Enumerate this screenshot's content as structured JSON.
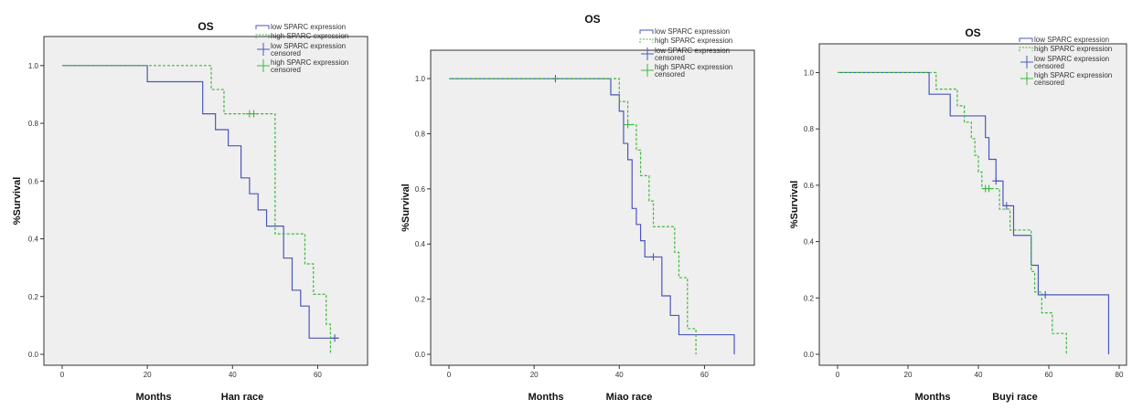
{
  "colors": {
    "low": "#4a58b8",
    "high": "#3fb93f",
    "plot_bg": "#efefef",
    "axis": "#333333"
  },
  "chart_data": [
    {
      "type": "line",
      "subtype": "kaplan-meier",
      "title": "OS",
      "xlabel": "Months",
      "caption": "Han race",
      "ylabel": "%Survival",
      "xlim": [
        0,
        70
      ],
      "ylim": [
        0,
        1.05
      ],
      "xticks": [
        "0",
        "20",
        "40",
        "60"
      ],
      "yticks": [
        "0.0",
        "0.2",
        "0.4",
        "0.6",
        "0.8",
        "1.0"
      ],
      "grid": false,
      "legend_position": "top-right",
      "legend": [
        "low SPARC expression",
        "high SPARC expression",
        "low SPARC expression censored",
        "high SPARC expression censored"
      ],
      "series": [
        {
          "name": "low SPARC expression",
          "color_key": "low",
          "dashed": false,
          "x": [
            0,
            20,
            33,
            36,
            39,
            42,
            44,
            46,
            48,
            50,
            52,
            54,
            56,
            58,
            65
          ],
          "y": [
            1.0,
            0.944,
            0.833,
            0.778,
            0.722,
            0.611,
            0.556,
            0.5,
            0.444,
            0.444,
            0.333,
            0.222,
            0.167,
            0.056,
            0.056
          ],
          "censored": [
            {
              "x": 64,
              "y": 0.056
            }
          ]
        },
        {
          "name": "high SPARC expression",
          "color_key": "high",
          "dashed": true,
          "x": [
            0,
            35,
            38,
            47,
            50,
            56,
            57,
            59,
            62,
            63
          ],
          "y": [
            1.0,
            0.917,
            0.833,
            0.833,
            0.417,
            0.417,
            0.313,
            0.208,
            0.104,
            0.0
          ],
          "censored": [
            {
              "x": 44,
              "y": 0.833
            },
            {
              "x": 45,
              "y": 0.833
            }
          ]
        }
      ]
    },
    {
      "type": "line",
      "subtype": "kaplan-meier",
      "title": "OS",
      "xlabel": "Months",
      "caption": "Miao race",
      "ylabel": "%Survival",
      "xlim": [
        0,
        70
      ],
      "ylim": [
        0,
        1.05
      ],
      "xticks": [
        "0",
        "20",
        "40",
        "60"
      ],
      "yticks": [
        "0.0",
        "0.2",
        "0.4",
        "0.6",
        "0.8",
        "1.0"
      ],
      "grid": false,
      "legend_position": "top-right",
      "legend": [
        "low SPARC expression",
        "high SPARC expression",
        "low SPARC expression censored",
        "high SPARC expression censored"
      ],
      "series": [
        {
          "name": "low SPARC expression",
          "color_key": "low",
          "dashed": false,
          "x": [
            0,
            38,
            40,
            41,
            42,
            43,
            44,
            45,
            46,
            48,
            50,
            52,
            54,
            67
          ],
          "y": [
            1.0,
            0.941,
            0.882,
            0.765,
            0.706,
            0.529,
            0.471,
            0.412,
            0.353,
            0.353,
            0.212,
            0.141,
            0.071,
            0.0
          ],
          "censored": [
            {
              "x": 25,
              "y": 1.0
            },
            {
              "x": 48,
              "y": 0.353
            }
          ]
        },
        {
          "name": "high SPARC expression",
          "color_key": "high",
          "dashed": true,
          "x": [
            0,
            40,
            42,
            44,
            45,
            47,
            48,
            50,
            53,
            54,
            56,
            58
          ],
          "y": [
            1.0,
            0.917,
            0.833,
            0.741,
            0.648,
            0.556,
            0.463,
            0.463,
            0.37,
            0.278,
            0.093,
            0.0
          ],
          "censored": [
            {
              "x": 42,
              "y": 0.833
            }
          ]
        }
      ]
    },
    {
      "type": "line",
      "subtype": "kaplan-meier",
      "title": "OS",
      "xlabel": "Months",
      "caption": "Buyi race",
      "ylabel": "%Survival",
      "xlim": [
        0,
        80
      ],
      "ylim": [
        0,
        1.05
      ],
      "xticks": [
        "0",
        "20",
        "40",
        "60",
        "80"
      ],
      "yticks": [
        "0.0",
        "0.2",
        "0.4",
        "0.6",
        "0.8",
        "1.0"
      ],
      "grid": false,
      "legend_position": "top-right",
      "legend": [
        "low SPARC expression",
        "high SPARC expression",
        "low SPARC expression censored",
        "high SPARC expression censored"
      ],
      "series": [
        {
          "name": "low SPARC expression",
          "color_key": "low",
          "dashed": false,
          "x": [
            0,
            26,
            32,
            42,
            43,
            45,
            47,
            50,
            55,
            57,
            77
          ],
          "y": [
            1.0,
            0.923,
            0.846,
            0.769,
            0.692,
            0.615,
            0.527,
            0.422,
            0.316,
            0.211,
            0.0
          ],
          "censored": [
            {
              "x": 45,
              "y": 0.615
            },
            {
              "x": 48,
              "y": 0.527
            },
            {
              "x": 59,
              "y": 0.211
            }
          ]
        },
        {
          "name": "high SPARC expression",
          "color_key": "high",
          "dashed": true,
          "x": [
            0,
            28,
            34,
            36,
            38,
            39,
            40,
            41,
            44,
            46,
            49,
            55,
            56,
            58,
            61,
            65
          ],
          "y": [
            1.0,
            0.941,
            0.882,
            0.824,
            0.765,
            0.706,
            0.647,
            0.588,
            0.588,
            0.515,
            0.441,
            0.294,
            0.221,
            0.147,
            0.074,
            0.0
          ],
          "censored": [
            {
              "x": 42,
              "y": 0.588
            },
            {
              "x": 43,
              "y": 0.588
            }
          ]
        }
      ]
    }
  ]
}
